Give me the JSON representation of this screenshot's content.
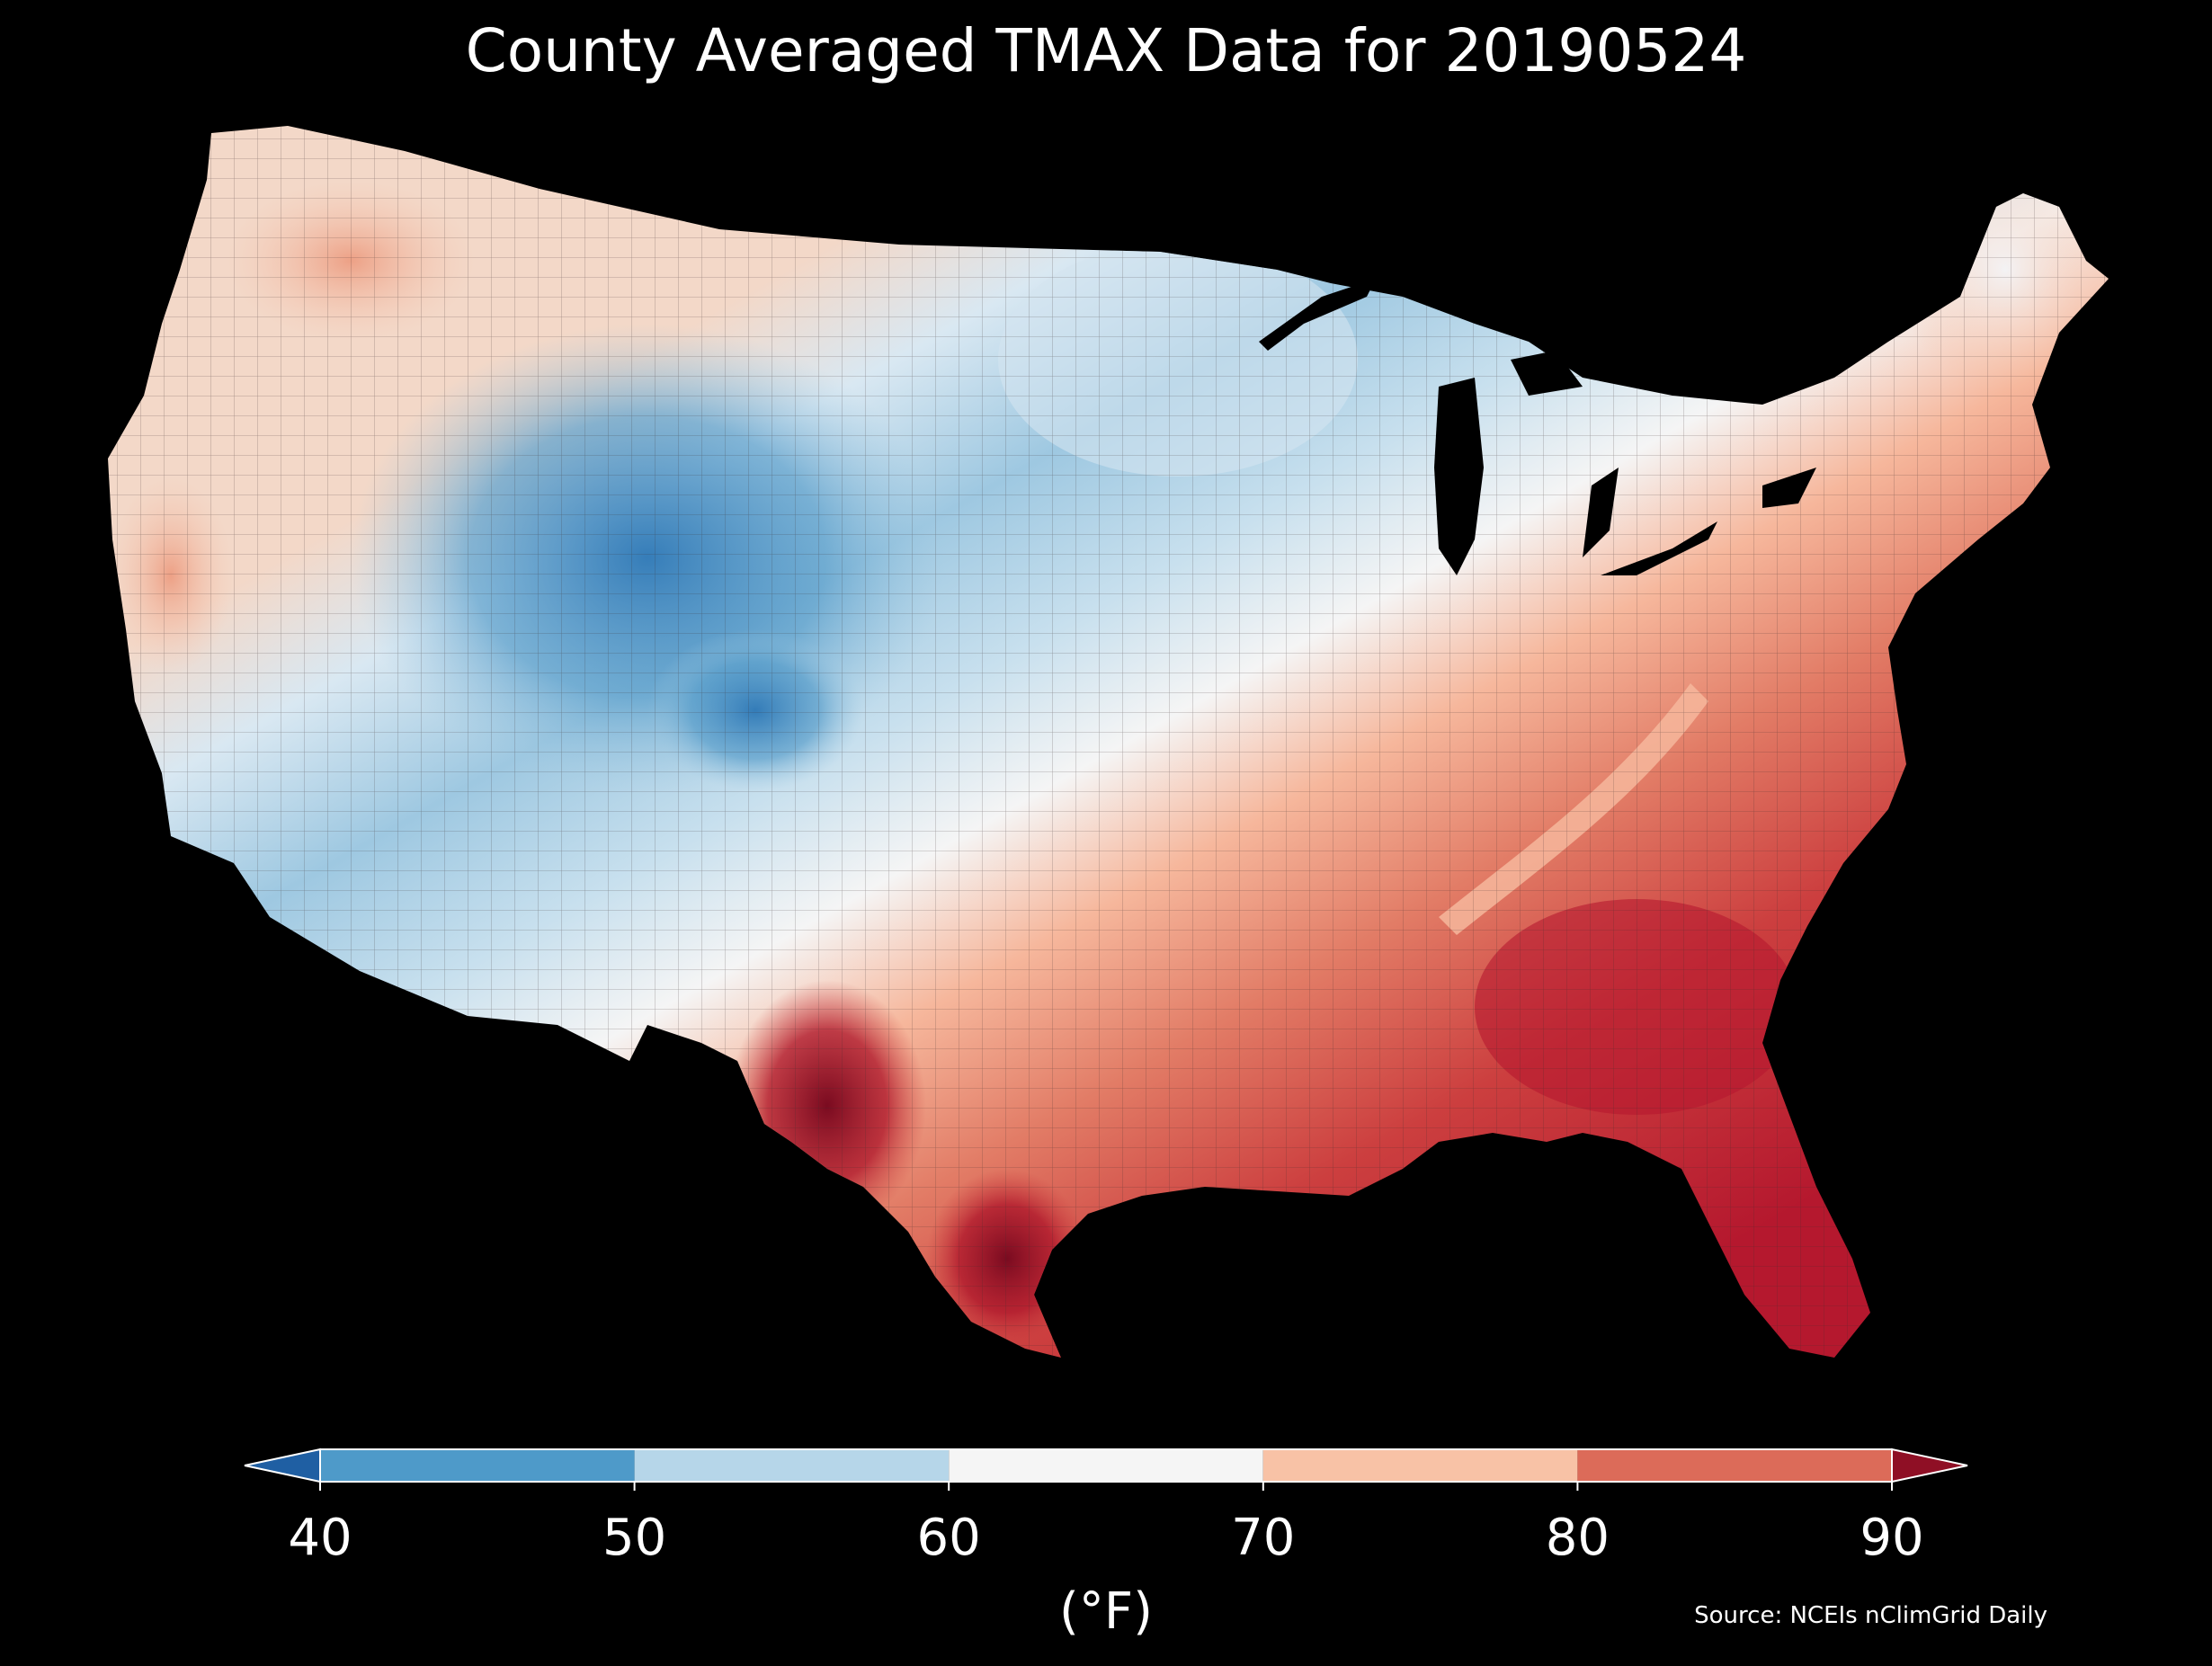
{
  "title": "County Averaged TMAX Data for 20190524",
  "colorbar": {
    "ticks": [
      "40",
      "50",
      "60",
      "70",
      "80",
      "90"
    ],
    "unit": "(°F)",
    "under_color": "#1f5fa3",
    "over_color": "#8f0f25",
    "bins": [
      {
        "from": 40,
        "to": 50,
        "color": "#4e9ac9"
      },
      {
        "from": 50,
        "to": 60,
        "color": "#b6d6e9"
      },
      {
        "from": 60,
        "to": 70,
        "color": "#f5f5f5"
      },
      {
        "from": 70,
        "to": 80,
        "color": "#f8c2a6"
      },
      {
        "from": 80,
        "to": 90,
        "color": "#dc6b59"
      }
    ]
  },
  "source": "Source: NCEIs nClimGrid Daily",
  "background_color": "#000000"
}
